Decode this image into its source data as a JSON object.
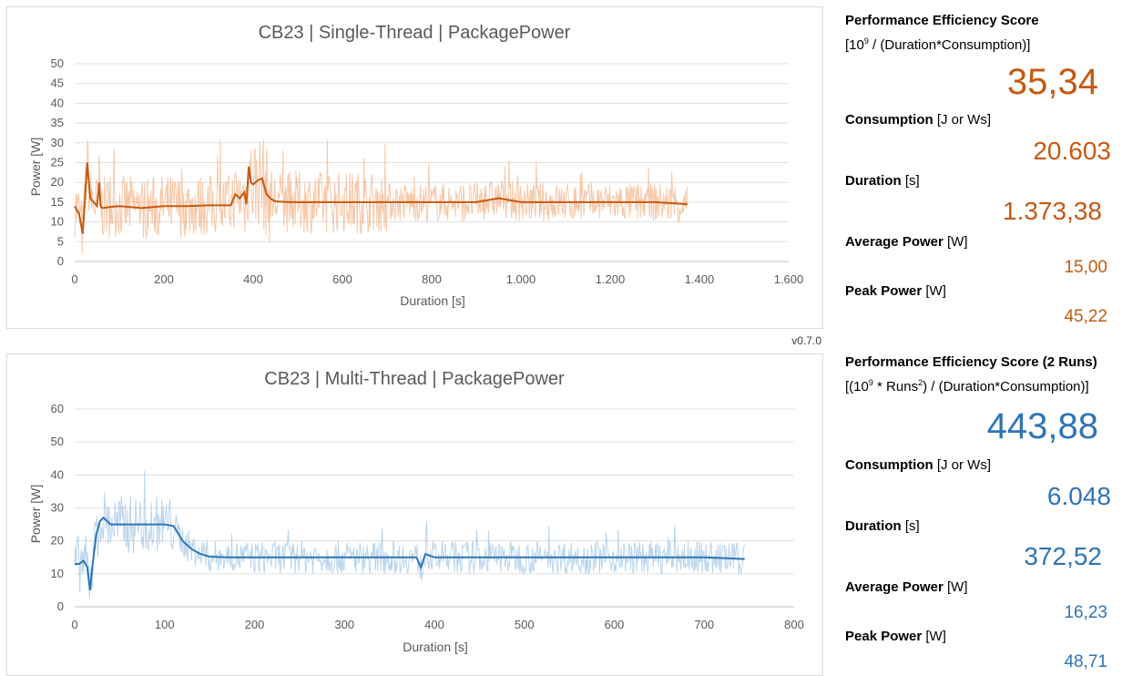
{
  "version": "v0.7.0",
  "colors": {
    "single_thread": "#c55a11",
    "single_thread_light": "#f4b183",
    "multi_thread": "#2e75b6",
    "multi_thread_light": "#9dc3e6"
  },
  "single_thread": {
    "title": "CB23 | Single-Thread | PackagePower",
    "score_label": "Performance Efficiency Score",
    "score_formula_open": "[10",
    "score_formula_exp": "9",
    "score_formula_close": " / (Duration*Consumption)]",
    "score": "35,34",
    "consumption_label": "Consumption",
    "consumption_unit": "[J or Ws]",
    "consumption": "20.603",
    "duration_label": "Duration",
    "duration_unit": "[s]",
    "duration": "1.373,38",
    "avg_power_label": "Average Power",
    "avg_power_unit": "[W]",
    "avg_power": "15,00",
    "peak_power_label": "Peak Power",
    "peak_power_unit": "[W]",
    "peak_power": "45,22"
  },
  "multi_thread": {
    "title": "CB23 | Multi-Thread | PackagePower",
    "score_label": "Performance Efficiency Score (2 Runs)",
    "score_formula_a": "[(10",
    "score_formula_exp1": "9",
    "score_formula_b": " * Runs",
    "score_formula_exp2": "2",
    "score_formula_c": ") / (Duration*Consumption)]",
    "score": "443,88",
    "consumption_label": "Consumption",
    "consumption_unit": "[J or Ws]",
    "consumption": "6.048",
    "duration_label": "Duration",
    "duration_unit": "[s]",
    "duration": "372,52",
    "avg_power_label": "Average Power",
    "avg_power_unit": "[W]",
    "avg_power": "16,23",
    "peak_power_label": "Peak Power",
    "peak_power_unit": "[W]",
    "peak_power": "48,71"
  },
  "chart_data": [
    {
      "type": "line",
      "title": "CB23 | Single-Thread | PackagePower",
      "xlabel": "Duration [s]",
      "ylabel": "Power [W]",
      "xlim": [
        0,
        1600
      ],
      "ylim": [
        0,
        50
      ],
      "xticks": [
        0,
        200,
        400,
        600,
        800,
        1000,
        1200,
        1400,
        1600
      ],
      "xtick_labels": [
        "0",
        "200",
        "400",
        "600",
        "800",
        "1.000",
        "1.200",
        "1.400",
        "1.600"
      ],
      "yticks": [
        0,
        5,
        10,
        15,
        20,
        25,
        30,
        35,
        40,
        45,
        50
      ],
      "grid": true,
      "series": [
        {
          "style": "smoothed",
          "x": [
            0,
            10,
            18,
            22,
            28,
            35,
            50,
            55,
            58,
            62,
            80,
            100,
            150,
            200,
            250,
            300,
            350,
            360,
            370,
            380,
            385,
            390,
            395,
            400,
            410,
            420,
            430,
            440,
            450,
            480,
            500,
            600,
            700,
            800,
            900,
            950,
            1000,
            1050,
            1100,
            1200,
            1300,
            1373
          ],
          "y": [
            14,
            12,
            7,
            14,
            25,
            16,
            14,
            20,
            14,
            13.5,
            13.8,
            14,
            13.5,
            14,
            14,
            14.2,
            14.2,
            17,
            16,
            17.5,
            14.5,
            24,
            20,
            19.5,
            20.5,
            21,
            17,
            15.8,
            15.2,
            15,
            15,
            15,
            15,
            15,
            15,
            16,
            15,
            15,
            15,
            15,
            15,
            14.5
          ]
        }
      ]
    },
    {
      "type": "line",
      "title": "CB23 | Multi-Thread | PackagePower",
      "xlabel": "Duration [s]",
      "ylabel": "Power [W]",
      "xlim": [
        0,
        800
      ],
      "ylim": [
        0,
        60
      ],
      "xticks": [
        0,
        100,
        200,
        300,
        400,
        500,
        600,
        700,
        800
      ],
      "xtick_labels": [
        "0",
        "100",
        "200",
        "300",
        "400",
        "500",
        "600",
        "700",
        "800"
      ],
      "yticks": [
        0,
        10,
        20,
        30,
        40,
        50,
        60
      ],
      "grid": true,
      "series": [
        {
          "style": "smoothed",
          "x": [
            0,
            5,
            10,
            14,
            17,
            20,
            24,
            28,
            32,
            40,
            60,
            80,
            100,
            110,
            120,
            130,
            140,
            150,
            170,
            200,
            250,
            300,
            350,
            380,
            385,
            390,
            395,
            400,
            450,
            500,
            600,
            700,
            745
          ],
          "y": [
            13,
            13,
            14,
            12,
            5,
            13,
            22,
            26,
            27,
            25,
            25,
            25,
            25,
            24.5,
            20,
            17.5,
            16,
            15.2,
            15,
            15,
            15,
            15,
            15,
            15,
            12,
            16,
            15.5,
            15,
            15,
            15,
            15,
            15,
            14.5
          ]
        }
      ]
    }
  ]
}
